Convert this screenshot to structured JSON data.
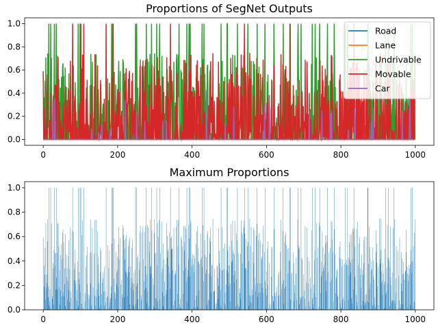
{
  "chart_data": [
    {
      "type": "line",
      "title": "Proportions of SegNet Outputs",
      "xlabel": "",
      "ylabel": "",
      "xlim": [
        -50,
        1050
      ],
      "ylim": [
        -0.05,
        1.05
      ],
      "xticks": [
        0,
        200,
        400,
        600,
        800,
        1000
      ],
      "xtick_labels": [
        "0",
        "200",
        "400",
        "600",
        "800",
        "1000"
      ],
      "yticks": [
        0.0,
        0.2,
        0.4,
        0.6,
        0.8,
        1.0
      ],
      "ytick_labels": [
        "0.0",
        "0.2",
        "0.4",
        "0.6",
        "0.8",
        "1.0"
      ],
      "grid": false,
      "legend_position": "top-right",
      "series": [
        {
          "name": "Road",
          "color": "#1f77b4",
          "pattern": "near-zero",
          "range": [
            0,
            0.0
          ],
          "n_points": 1000
        },
        {
          "name": "Lane",
          "color": "#ff7f0e",
          "pattern": "near-zero",
          "range": [
            0,
            0.01
          ],
          "n_points": 1000
        },
        {
          "name": "Undrivable",
          "color": "#2ca02c",
          "pattern": "spiky",
          "range": [
            0,
            1.0
          ],
          "n_points": 1000
        },
        {
          "name": "Movable",
          "color": "#d62728",
          "pattern": "spiky",
          "range": [
            0,
            1.0
          ],
          "n_points": 1000
        },
        {
          "name": "Car",
          "color": "#9467bd",
          "pattern": "rare-spikes",
          "range": [
            0,
            0.45
          ],
          "n_points": 1000
        }
      ]
    },
    {
      "type": "bar",
      "title": "Maximum Proportions",
      "xlabel": "",
      "ylabel": "",
      "xlim": [
        -50,
        1050
      ],
      "ylim": [
        0,
        1.05
      ],
      "xticks": [
        0,
        200,
        400,
        600,
        800,
        1000
      ],
      "xtick_labels": [
        "0",
        "200",
        "400",
        "600",
        "800",
        "1000"
      ],
      "yticks": [
        0.0,
        0.2,
        0.4,
        0.6,
        0.8,
        1.0
      ],
      "ytick_labels": [
        "0.0",
        "0.2",
        "0.4",
        "0.6",
        "0.8",
        "1.0"
      ],
      "grid": false,
      "bar_color": "#1f77b4",
      "n_bars": 1000,
      "value_range": [
        0,
        1.0
      ]
    }
  ]
}
